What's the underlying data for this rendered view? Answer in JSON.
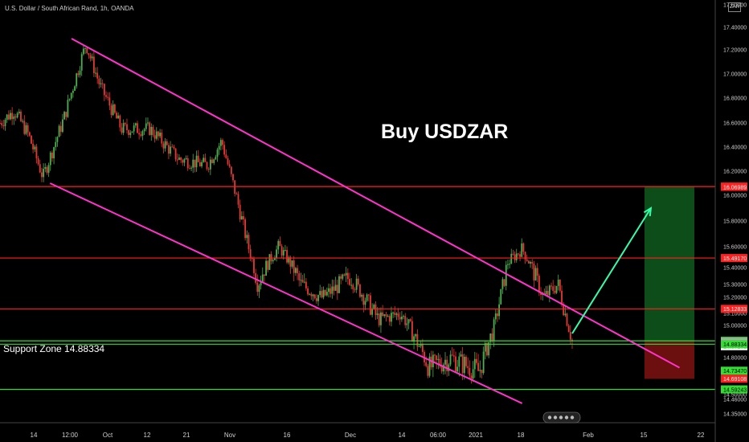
{
  "header": {
    "symbol": "U.S. Dollar / South African Rand, 1h, OANDA",
    "currency": "ZAR"
  },
  "annotations": {
    "title": "Buy USDZAR",
    "support": "Support Zone 14.88334"
  },
  "colors": {
    "background": "#000000",
    "up_candle": "#4caf50",
    "down_candle": "#e53935",
    "channel": "#ff33cc",
    "resistance_line": "#ff2020",
    "support_line": "#33dd33",
    "arrow": "#33ffaa",
    "profit_zone": "#0d4d1a",
    "loss_zone": "#6b0f0f"
  },
  "icons": {
    "watermark": "tradingview-logo-icon"
  },
  "chart_data": {
    "type": "candlestick",
    "title": "U.S. Dollar / South African Rand, 1h, OANDA",
    "ylim": [
      14.3,
      17.6
    ],
    "y_ticks": [
      "17.60000",
      "17.40000",
      "17.20000",
      "17.00000",
      "16.80000",
      "16.60000",
      "16.40000",
      "16.20000",
      "16.00000",
      "15.80000",
      "15.60000",
      "15.40000",
      "15.30000",
      "15.20000",
      "15.10000",
      "15.00000",
      "14.90000",
      "14.80000",
      "14.70000",
      "14.60000",
      "14.50000",
      "14.46000",
      "14.35000"
    ],
    "x_ticks": [
      "14",
      "12:00",
      "Oct",
      "12",
      "21",
      "Nov",
      "16",
      "Dec",
      "14",
      "06:00",
      "2021",
      "18",
      "Feb",
      "15",
      "22"
    ],
    "price_path": [
      {
        "x": 0,
        "y": 16.6
      },
      {
        "x": 0.02,
        "y": 16.7
      },
      {
        "x": 0.04,
        "y": 16.5
      },
      {
        "x": 0.06,
        "y": 16.15
      },
      {
        "x": 0.09,
        "y": 16.65
      },
      {
        "x": 0.12,
        "y": 17.25
      },
      {
        "x": 0.14,
        "y": 16.9
      },
      {
        "x": 0.17,
        "y": 16.55
      },
      {
        "x": 0.21,
        "y": 16.55
      },
      {
        "x": 0.25,
        "y": 16.3
      },
      {
        "x": 0.29,
        "y": 16.25
      },
      {
        "x": 0.31,
        "y": 16.45
      },
      {
        "x": 0.33,
        "y": 16.0
      },
      {
        "x": 0.36,
        "y": 15.3
      },
      {
        "x": 0.39,
        "y": 15.6
      },
      {
        "x": 0.42,
        "y": 15.3
      },
      {
        "x": 0.45,
        "y": 15.2
      },
      {
        "x": 0.49,
        "y": 15.35
      },
      {
        "x": 0.53,
        "y": 15.05
      },
      {
        "x": 0.56,
        "y": 15.1
      },
      {
        "x": 0.6,
        "y": 14.75
      },
      {
        "x": 0.63,
        "y": 14.8
      },
      {
        "x": 0.67,
        "y": 14.73
      },
      {
        "x": 0.69,
        "y": 14.98
      },
      {
        "x": 0.71,
        "y": 15.45
      },
      {
        "x": 0.73,
        "y": 15.58
      },
      {
        "x": 0.76,
        "y": 15.2
      },
      {
        "x": 0.78,
        "y": 15.3
      },
      {
        "x": 0.8,
        "y": 14.9
      }
    ],
    "channel": {
      "upper": [
        {
          "x": 0.1,
          "y": 17.3
        },
        {
          "x": 0.95,
          "y": 14.75
        }
      ],
      "lower": [
        {
          "x": 0.07,
          "y": 16.1
        },
        {
          "x": 0.73,
          "y": 14.43
        }
      ]
    },
    "horizontal_levels": [
      {
        "price": 16.07232,
        "label": "16.07232",
        "color": "#ff2020",
        "line": true
      },
      {
        "price": 16.06989,
        "label": "16.06989",
        "color": "#ff2020",
        "line": false
      },
      {
        "price": 15.4917,
        "label": "15.49170",
        "color": "#ff2020",
        "line": true
      },
      {
        "price": 15.12833,
        "label": "15.12833",
        "color": "#ff2020",
        "line": true
      },
      {
        "price": 14.90455,
        "label": "14.90455",
        "color": "#33dd33",
        "line": true
      },
      {
        "price": 14.87102,
        "label": "14.87102",
        "color": "#ffffff",
        "line": false
      },
      {
        "price": 14.89736,
        "label": "14.89736",
        "color": "#aaaaaa",
        "line": false
      },
      {
        "price": 14.88334,
        "label": "14.88334",
        "color": "#33dd33",
        "line": true
      },
      {
        "price": 14.7347,
        "label": "14.73470",
        "color": "#33dd33",
        "line": false
      },
      {
        "price": 14.69108,
        "label": "14.69108",
        "color": "#ff2020",
        "line": false
      },
      {
        "price": 14.59243,
        "label": "14.59243",
        "color": "#33dd33",
        "line": true
      }
    ],
    "position": {
      "entry": 14.9,
      "target": 16.07,
      "stop": 14.69
    },
    "arrow": {
      "from": {
        "x": 0.8,
        "y": 14.95
      },
      "to": {
        "x": 0.91,
        "y": 15.9
      }
    }
  }
}
